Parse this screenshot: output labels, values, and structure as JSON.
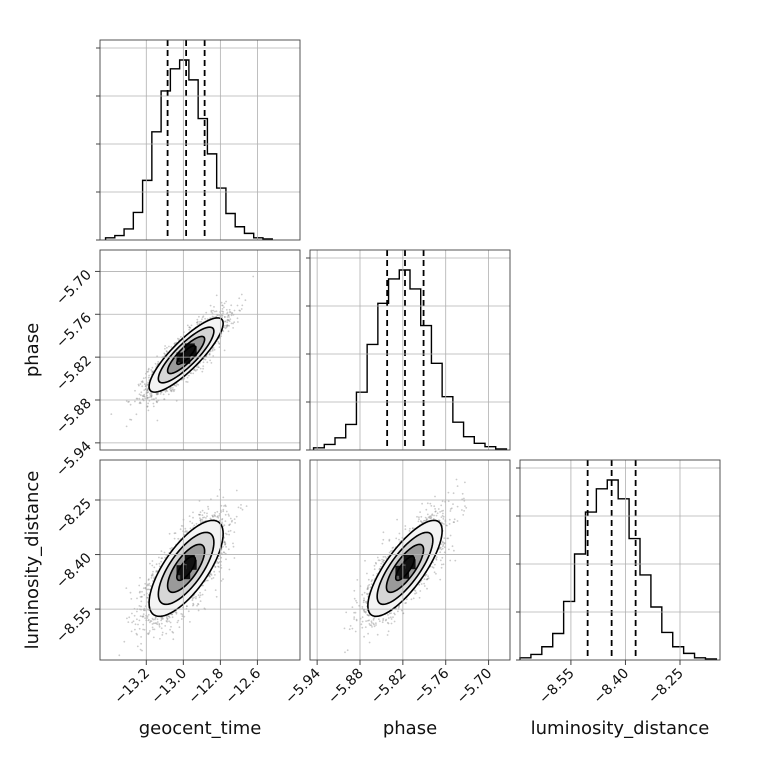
{
  "chart_data": {
    "type": "corner",
    "parameters": [
      "geocent_time",
      "phase",
      "luminosity_distance"
    ],
    "ranges": {
      "geocent_time": [
        -13.45,
        -12.37
      ],
      "phase": [
        -5.95,
        -5.67
      ],
      "luminosity_distance": [
        -8.69,
        -8.14
      ]
    },
    "ticks": {
      "geocent_time": [
        -13.2,
        -13.0,
        -12.8,
        -12.6
      ],
      "phase": [
        -5.94,
        -5.88,
        -5.82,
        -5.76,
        -5.7
      ],
      "luminosity_distance": [
        -8.55,
        -8.4,
        -8.25
      ]
    },
    "tick_labels": {
      "geocent_time": [
        "−13.2",
        "−13.0",
        "−12.8",
        "−12.6"
      ],
      "phase": [
        "−5.94",
        "−5.88",
        "−5.82",
        "−5.76",
        "−5.70"
      ],
      "luminosity_distance": [
        "−8.55",
        "−8.40",
        "−8.25"
      ]
    },
    "histograms": [
      {
        "parameter": "geocent_time",
        "edges": [
          -13.42,
          -13.37,
          -13.32,
          -13.27,
          -13.22,
          -13.17,
          -13.12,
          -13.07,
          -13.02,
          -12.97,
          -12.92,
          -12.87,
          -12.82,
          -12.77,
          -12.72,
          -12.67,
          -12.62,
          -12.57,
          -12.52
        ],
        "counts": [
          2,
          4,
          10,
          25,
          54,
          98,
          135,
          155,
          163,
          145,
          110,
          78,
          47,
          24,
          12,
          6,
          2,
          1
        ],
        "quantiles": [
          -13.085,
          -12.985,
          -12.885
        ]
      },
      {
        "parameter": "phase",
        "edges": [
          -5.945,
          -5.93,
          -5.915,
          -5.9,
          -5.885,
          -5.87,
          -5.855,
          -5.84,
          -5.825,
          -5.81,
          -5.795,
          -5.78,
          -5.765,
          -5.75,
          -5.735,
          -5.72,
          -5.705,
          -5.69,
          -5.675
        ],
        "counts": [
          2,
          5,
          11,
          23,
          52,
          95,
          132,
          154,
          162,
          145,
          112,
          78,
          48,
          25,
          12,
          6,
          3,
          1
        ],
        "quantiles": [
          -5.842,
          -5.817,
          -5.791
        ]
      },
      {
        "parameter": "luminosity_distance",
        "edges": [
          -8.69,
          -8.66,
          -8.63,
          -8.6,
          -8.57,
          -8.54,
          -8.51,
          -8.48,
          -8.45,
          -8.42,
          -8.39,
          -8.36,
          -8.33,
          -8.3,
          -8.27,
          -8.24,
          -8.21,
          -8.18,
          -8.15
        ],
        "counts": [
          2,
          5,
          12,
          24,
          53,
          96,
          134,
          155,
          163,
          146,
          110,
          77,
          48,
          25,
          12,
          6,
          2,
          1
        ],
        "quantiles": [
          -8.504,
          -8.438,
          -8.372
        ]
      }
    ],
    "scatter_2d": [
      {
        "x": "geocent_time",
        "y": "phase",
        "mean": [
          -12.985,
          -5.817
        ],
        "sigma": [
          0.1,
          0.026
        ],
        "correlation": 0.85,
        "n_points": 2800
      },
      {
        "x": "geocent_time",
        "y": "luminosity_distance",
        "mean": [
          -12.985,
          -8.438
        ],
        "sigma": [
          0.1,
          0.066
        ],
        "correlation": 0.72,
        "n_points": 2800
      },
      {
        "x": "phase",
        "y": "luminosity_distance",
        "mean": [
          -5.817,
          -8.438
        ],
        "sigma": [
          0.026,
          0.066
        ],
        "correlation": 0.78,
        "n_points": 2800
      }
    ],
    "contour_levels_sigma": [
      0.5,
      1.0,
      1.5,
      2.0
    ],
    "grid": true,
    "colors": {
      "line": "#000000",
      "points": "#8c8c8c",
      "grid": "#b0b0b0",
      "frame": "#444444"
    }
  }
}
